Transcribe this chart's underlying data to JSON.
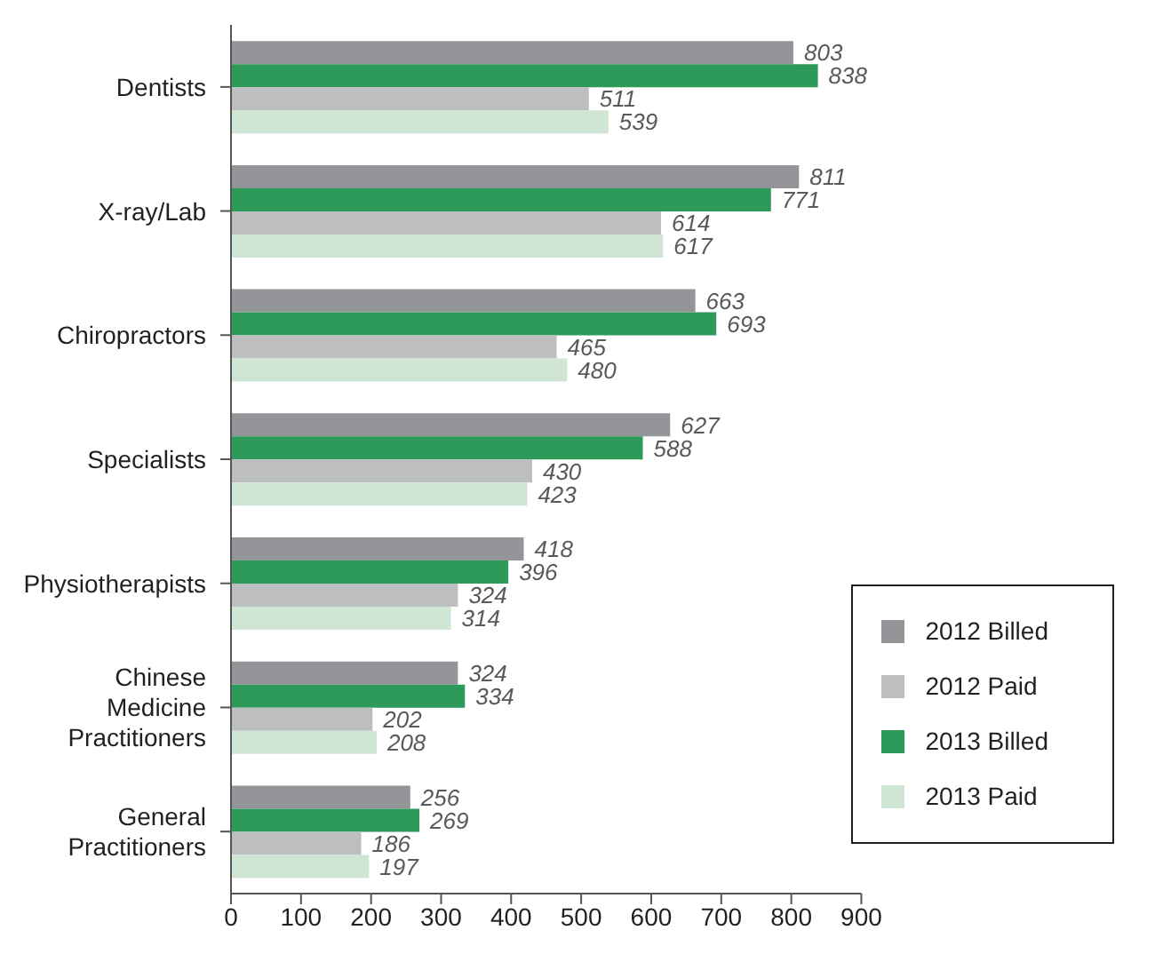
{
  "chart_data": {
    "type": "bar",
    "orientation": "horizontal",
    "categories": [
      "Dentists",
      "X-ray/Lab",
      "Chiropractors",
      "Specialists",
      "Physiotherapists",
      "Chinese Medicine Practitioners",
      "General Practitioners"
    ],
    "series": [
      {
        "name": "2012 Billed",
        "color": "#939598",
        "values": [
          803,
          811,
          663,
          627,
          418,
          324,
          256
        ]
      },
      {
        "name": "2013 Billed",
        "color": "#2e9a5a",
        "values": [
          838,
          771,
          693,
          588,
          396,
          334,
          269
        ]
      },
      {
        "name": "2012 Paid",
        "color": "#bcbec0",
        "values": [
          511,
          614,
          465,
          430,
          324,
          202,
          186
        ]
      },
      {
        "name": "2013 Paid",
        "color": "#cfe6d5",
        "values": [
          539,
          617,
          480,
          423,
          314,
          208,
          197
        ]
      }
    ],
    "xlim": [
      0,
      900
    ],
    "xticks": [
      0,
      100,
      200,
      300,
      400,
      500,
      600,
      700,
      800,
      900
    ],
    "data_labels": true,
    "legend": "bottom right",
    "grid": false
  }
}
